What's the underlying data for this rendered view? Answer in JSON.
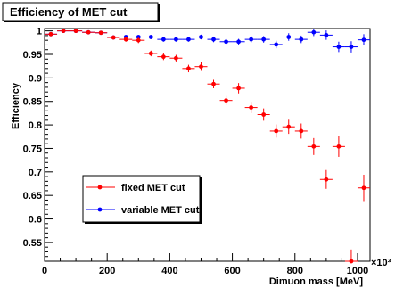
{
  "chart_data": {
    "type": "scatter",
    "title": "Efficiency of MET cut",
    "xlabel": "Dimuon mass [MeV]",
    "ylabel": "Efficiency",
    "x_multiplier": "×10³",
    "xlim": [
      0,
      1040
    ],
    "ylim": [
      0.51,
      1.005
    ],
    "x_ticks": [
      0,
      200,
      400,
      600,
      800,
      1000
    ],
    "y_ticks": [
      0.55,
      0.6,
      0.65,
      0.7,
      0.75,
      0.8,
      0.85,
      0.9,
      0.95,
      1
    ],
    "grid": false,
    "legend_position": "bottom-left",
    "series": [
      {
        "name": "fixed MET cut",
        "color": "#ff0000",
        "x": [
          20,
          60,
          100,
          140,
          180,
          220,
          260,
          300,
          340,
          380,
          420,
          460,
          500,
          540,
          580,
          620,
          660,
          700,
          740,
          780,
          820,
          860,
          900,
          940,
          980,
          1020
        ],
        "y": [
          0.993,
          1.0,
          1.0,
          0.997,
          0.996,
          0.986,
          0.982,
          0.98,
          0.952,
          0.945,
          0.942,
          0.92,
          0.924,
          0.887,
          0.852,
          0.878,
          0.837,
          0.822,
          0.787,
          0.796,
          0.787,
          0.754,
          0.684,
          0.754,
          0.51,
          0.666
        ],
        "yerr": [
          0.003,
          0.002,
          0.002,
          0.003,
          0.003,
          0.004,
          0.005,
          0.006,
          0.006,
          0.007,
          0.007,
          0.008,
          0.009,
          0.009,
          0.01,
          0.011,
          0.012,
          0.013,
          0.014,
          0.015,
          0.016,
          0.018,
          0.02,
          0.022,
          0.025,
          0.028
        ]
      },
      {
        "name": "variable MET cut",
        "color": "#0000ff",
        "x": [
          20,
          60,
          100,
          140,
          180,
          220,
          260,
          300,
          340,
          380,
          420,
          460,
          500,
          540,
          580,
          620,
          660,
          700,
          740,
          780,
          820,
          860,
          900,
          940,
          980,
          1020
        ],
        "y": [
          0.993,
          1.0,
          1.0,
          0.997,
          0.996,
          0.986,
          0.987,
          0.987,
          0.987,
          0.982,
          0.982,
          0.982,
          0.987,
          0.982,
          0.977,
          0.977,
          0.982,
          0.982,
          0.971,
          0.987,
          0.982,
          0.997,
          0.991,
          0.966,
          0.966,
          0.981
        ],
        "yerr": [
          0.003,
          0.002,
          0.002,
          0.003,
          0.003,
          0.004,
          0.004,
          0.004,
          0.004,
          0.005,
          0.005,
          0.005,
          0.005,
          0.006,
          0.006,
          0.006,
          0.007,
          0.007,
          0.008,
          0.008,
          0.008,
          0.008,
          0.01,
          0.011,
          0.012,
          0.012
        ]
      }
    ]
  }
}
